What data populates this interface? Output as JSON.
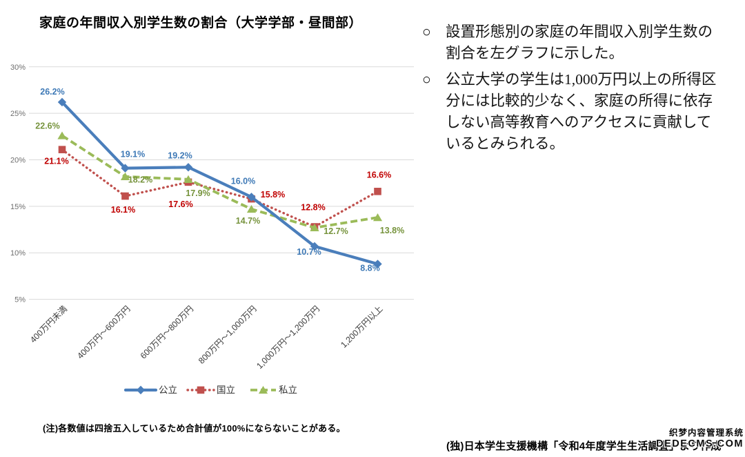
{
  "title": "家庭の年間収入別学生数の割合（大学学部・昼間部）",
  "chart_data": {
    "type": "line",
    "title": "家庭の年間収入別学生数の割合（大学学部・昼間部）",
    "categories": [
      "400万円未満",
      "400万円～600万円",
      "600万円～800万円",
      "800万円～1,000万円",
      "1,000万円～1,200万円",
      "1,200万円以上"
    ],
    "ylim": [
      5,
      30
    ],
    "y_tick_step": 5,
    "y_ticks": [
      "5%",
      "10%",
      "15%",
      "20%",
      "25%",
      "30%"
    ],
    "grid": true,
    "legend_position": "bottom",
    "series": [
      {
        "name": "公立",
        "color": "#4A7EBB",
        "label_color": "#3E79B6",
        "marker": "diamond",
        "line_style": "solid",
        "z": 2,
        "values": [
          26.2,
          19.1,
          19.2,
          16.0,
          10.7,
          8.8
        ],
        "labels": [
          "26.2%",
          "19.1%",
          "19.2%",
          "16.0%",
          "10.7%",
          "8.8%"
        ],
        "label_offsets": [
          [
            -14,
            -11
          ],
          [
            11,
            -16
          ],
          [
            -12,
            -13
          ],
          [
            -12,
            -19
          ],
          [
            -8,
            12
          ],
          [
            -11,
            10
          ]
        ]
      },
      {
        "name": "国立",
        "color": "#C0504D",
        "label_color": "#C00000",
        "marker": "square",
        "line_style": "dotted",
        "z": 0,
        "values": [
          21.1,
          16.1,
          17.6,
          15.8,
          12.8,
          16.6
        ],
        "labels": [
          "21.1%",
          "16.1%",
          "17.6%",
          "15.8%",
          "12.8%",
          "16.6%"
        ],
        "label_offsets": [
          [
            -8,
            21
          ],
          [
            -3,
            24
          ],
          [
            -11,
            36
          ],
          [
            31,
            -2
          ],
          [
            -2,
            -24
          ],
          [
            2,
            -20
          ]
        ]
      },
      {
        "name": "私立",
        "color": "#9BBB59",
        "label_color": "#76933C",
        "marker": "triangle",
        "line_style": "dashed",
        "z": 1,
        "values": [
          22.6,
          18.2,
          17.9,
          14.7,
          12.7,
          13.8
        ],
        "labels": [
          "22.6%",
          "18.2%",
          "17.9%",
          "14.7%",
          "12.7%",
          "13.8%"
        ],
        "label_offsets": [
          [
            -21,
            -10
          ],
          [
            22,
            9
          ],
          [
            14,
            24
          ],
          [
            -5,
            21
          ],
          [
            31,
            9
          ],
          [
            21,
            23
          ]
        ]
      }
    ]
  },
  "right_panel": {
    "bullets": [
      {
        "marker": "○",
        "lines": [
          "設置形態別の家庭の年間収入別学生数の",
          "割合を左グラフに示した。"
        ]
      },
      {
        "marker": "○",
        "lines": [
          "公立大学の学生は1,000万円以上の所得区",
          "分には比較的少なく、家庭の所得に依存",
          "しない高等教育へのアクセスに貢献して",
          "いるとみられる。"
        ]
      }
    ]
  },
  "note": "(注)各数値は四捨五入しているため合計値が100%にならないことがある。",
  "source": "(独)日本学生支援機構「令和4年度学生生活調査」より作成",
  "watermark": {
    "line1": "织梦内容管理系统",
    "line2": "DEDECMS.COM"
  }
}
